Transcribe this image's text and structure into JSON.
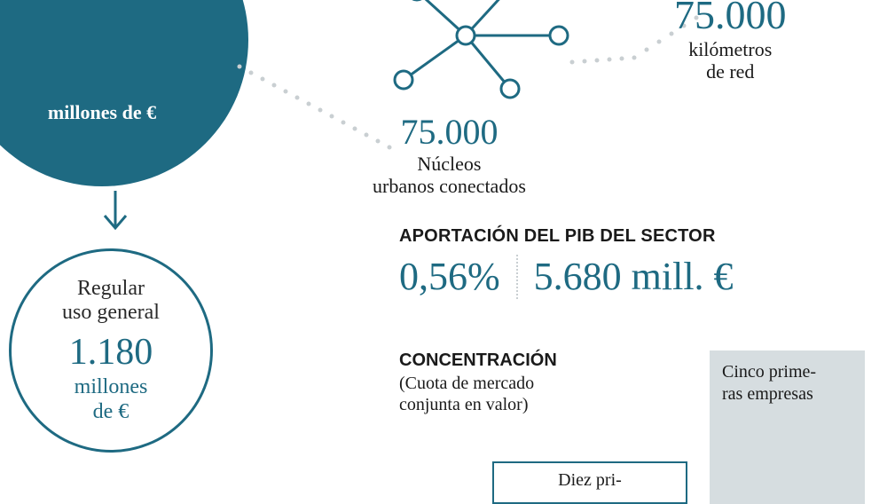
{
  "colors": {
    "teal": "#1e6a82",
    "text": "#1a1a1a",
    "lightgray": "#d6dde0",
    "dotgray": "#c9cfd2",
    "bg": "#ffffff"
  },
  "big_circle": {
    "unit": "millones de €",
    "fill": "#1e6a82"
  },
  "arrow": {
    "stroke": "#1e6a82",
    "width": 3
  },
  "small_circle": {
    "label": "Regular\nuso general",
    "value": "1.180",
    "unit": "millones\nde €",
    "border": "#1e6a82",
    "value_color": "#1e6a82",
    "label_color": "#2a2a2a"
  },
  "network": {
    "stroke": "#1e6a82",
    "node_r": 10,
    "line_w": 3,
    "right_stat": {
      "value": "75.000",
      "label": "kilómetros\nde red",
      "value_color": "#1e6a82",
      "label_color": "#1a1a1a",
      "value_fs": 46,
      "label_fs": 22
    },
    "bottom_stat": {
      "value": "75.000",
      "label": "Núcleos\nurbanos conectados",
      "value_color": "#1e6a82",
      "label_color": "#1a1a1a",
      "value_fs": 40,
      "label_fs": 22
    }
  },
  "pib": {
    "title": "APORTACIÓN DEL PIB DEL SECTOR",
    "pct": "0,56%",
    "val": "5.680 mill. €",
    "title_color": "#1a1a1a",
    "value_color": "#1e6a82",
    "sep_color": "#c9cfd2"
  },
  "concentration": {
    "title": "CONCENTRACIÓN",
    "subtitle": "(Cuota de mercado\nconjunta en valor)",
    "title_color": "#1a1a1a",
    "sub_color": "#1a1a1a",
    "bar1": {
      "label": "Diez pri-",
      "border": "#1e6a82",
      "bg": "#ffffff",
      "text_color": "#1a1a1a"
    },
    "bar2": {
      "label": "Cinco prime-\nras empresas",
      "bg": "#d6dde0",
      "text_color": "#1a1a1a"
    }
  },
  "dot_color": "#c9cfd2"
}
